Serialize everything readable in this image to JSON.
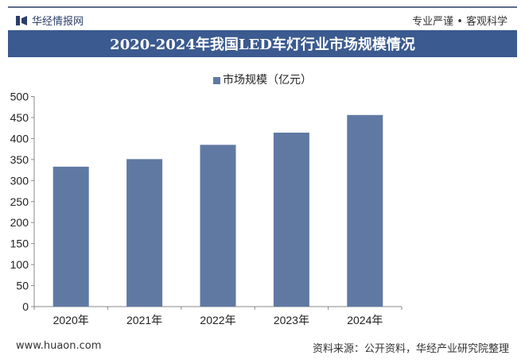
{
  "header": {
    "brand": "华经情报网",
    "slogan": "专业严谨 • 客观科学",
    "title": "2020-2024年我国LED车灯行业市场规模情况"
  },
  "footer": {
    "website": "www.huaon.com",
    "source": "资料来源：公开资料，华经产业研究院整理"
  },
  "colors": {
    "bar": "#6079a3",
    "title_bg": "#3b5a8f"
  },
  "chart_data": {
    "type": "bar",
    "title": "2020-2024年我国LED车灯行业市场规模情况",
    "categories": [
      "2020年",
      "2021年",
      "2022年",
      "2023年",
      "2024年"
    ],
    "series": [
      {
        "name": "市场规模（亿元）",
        "values": [
          333,
          351,
          385,
          414,
          456
        ]
      }
    ],
    "ylim": [
      0,
      500
    ],
    "yticks": [
      0,
      50,
      100,
      150,
      200,
      250,
      300,
      350,
      400,
      450,
      500
    ],
    "legend": "top-center",
    "grid": false
  }
}
